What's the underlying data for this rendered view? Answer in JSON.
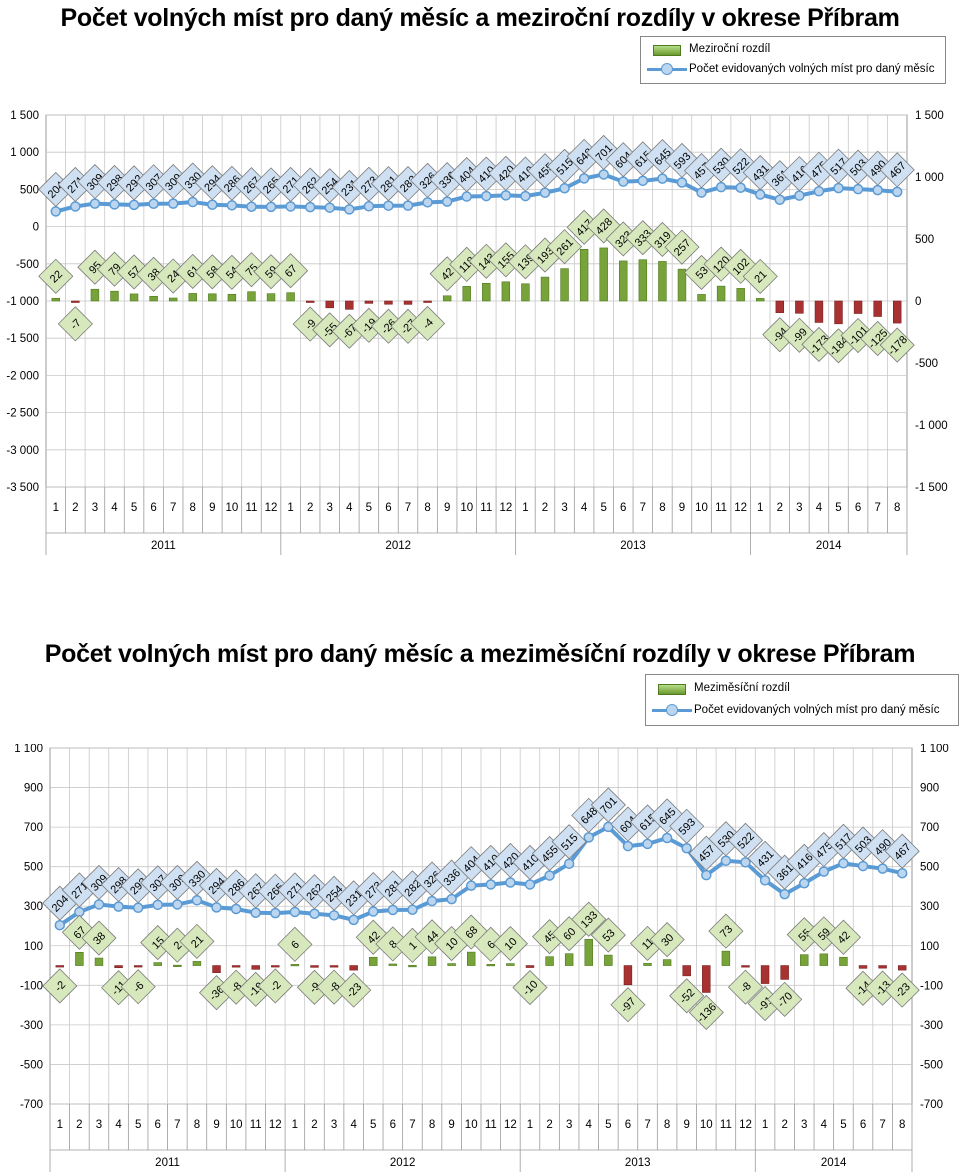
{
  "legend_labels": {
    "yoy_bar": "Meziroční rozdíl",
    "mom_bar": "Meziměsíční rozdíl",
    "line": "Počet evidovaných volných míst pro daný měsíc"
  },
  "colors": {
    "line": "#5b9bd5",
    "bar_positive": "#77a33a",
    "bar_negative": "#a83232",
    "label_line_fill": "#cfe0f2",
    "label_pos_fill": "#d7e8bd",
    "label_neg_fill": "#d7e8bd",
    "grid": "#c8c8c8"
  },
  "chart_data": [
    {
      "type": "bar+line",
      "title": "Počet volných míst pro daný měsíc a meziroční rozdíly v okrese Příbram",
      "months": [
        "1",
        "2",
        "3",
        "4",
        "5",
        "6",
        "7",
        "8",
        "9",
        "10",
        "11",
        "12",
        "1",
        "2",
        "3",
        "4",
        "5",
        "6",
        "7",
        "8",
        "9",
        "10",
        "11",
        "12",
        "1",
        "2",
        "3",
        "4",
        "5",
        "6",
        "7",
        "8",
        "9",
        "10",
        "11",
        "12",
        "1",
        "2",
        "3",
        "4",
        "5",
        "6",
        "7",
        "8"
      ],
      "years": [
        {
          "label": "2011",
          "count": 12
        },
        {
          "label": "2012",
          "count": 12
        },
        {
          "label": "2013",
          "count": 12
        },
        {
          "label": "2014",
          "count": 8
        }
      ],
      "line_series": {
        "name": "Počet evidovaných volných míst pro daný měsíc",
        "axis": "left",
        "values": [
          204,
          271,
          309,
          298,
          292,
          307,
          309,
          330,
          294,
          286,
          267,
          265,
          271,
          262,
          254,
          231,
          273,
          281,
          282,
          326,
          336,
          404,
          410,
          420,
          410,
          455,
          515,
          648,
          701,
          604,
          615,
          645,
          593,
          457,
          530,
          522,
          431,
          361,
          416,
          475,
          517,
          503,
          490,
          467
        ]
      },
      "bar_series": {
        "name": "Meziroční rozdíl",
        "axis": "right",
        "values": [
          22,
          -7,
          95,
          79,
          57,
          38,
          24,
          61,
          58,
          54,
          75,
          59,
          67,
          -9,
          -55,
          -67,
          -19,
          -26,
          -27,
          -4,
          42,
          118,
          143,
          155,
          139,
          193,
          261,
          417,
          428,
          323,
          333,
          319,
          257,
          53,
          120,
          102,
          21,
          -94,
          -99,
          -173,
          -184,
          -101,
          -125,
          -178
        ]
      },
      "left_axis": {
        "min": -3500,
        "max": 1500,
        "step": 500,
        "ticks": [
          "-3 500",
          "-3 000",
          "-2 500",
          "-2 000",
          "-1 500",
          "-1 000",
          "-500",
          "0",
          "500",
          "1 000",
          "1 500"
        ]
      },
      "right_axis": {
        "min": -1500,
        "max": 1500,
        "step": 500,
        "ticks": [
          "-1 500",
          "-1 000",
          "-500",
          "0",
          "500",
          "1 000",
          "1 500"
        ]
      },
      "grid": true
    },
    {
      "type": "bar+line",
      "title": "Počet volných míst pro daný měsíc a meziměsíční rozdíly v okrese Příbram",
      "months": [
        "1",
        "2",
        "3",
        "4",
        "5",
        "6",
        "7",
        "8",
        "9",
        "10",
        "11",
        "12",
        "1",
        "2",
        "3",
        "4",
        "5",
        "6",
        "7",
        "8",
        "9",
        "10",
        "11",
        "12",
        "1",
        "2",
        "3",
        "4",
        "5",
        "6",
        "7",
        "8",
        "9",
        "10",
        "11",
        "12",
        "1",
        "2",
        "3",
        "4",
        "5",
        "6",
        "7",
        "8"
      ],
      "years": [
        {
          "label": "2011",
          "count": 12
        },
        {
          "label": "2012",
          "count": 12
        },
        {
          "label": "2013",
          "count": 12
        },
        {
          "label": "2014",
          "count": 8
        }
      ],
      "line_series": {
        "name": "Počet evidovaných volných míst pro daný měsíc",
        "axis": "left",
        "values": [
          204,
          271,
          309,
          298,
          292,
          307,
          309,
          330,
          294,
          286,
          267,
          265,
          271,
          262,
          254,
          231,
          273,
          281,
          282,
          326,
          336,
          404,
          410,
          420,
          410,
          455,
          515,
          648,
          701,
          604,
          615,
          645,
          593,
          457,
          530,
          522,
          431,
          361,
          416,
          475,
          517,
          503,
          490,
          467
        ]
      },
      "bar_series": {
        "name": "Meziměsíční rozdíl",
        "axis": "left",
        "values": [
          -2,
          67,
          38,
          -11,
          -6,
          15,
          2,
          21,
          -36,
          -8,
          -19,
          -2,
          6,
          -9,
          -8,
          -23,
          42,
          8,
          1,
          44,
          10,
          68,
          6,
          10,
          -10,
          45,
          60,
          133,
          53,
          -97,
          11,
          30,
          -52,
          -136,
          73,
          -8,
          -91,
          -70,
          55,
          59,
          42,
          -14,
          -13,
          -23
        ]
      },
      "left_axis": {
        "min": -700,
        "max": 1100,
        "step": 200,
        "ticks": [
          "-700",
          "-500",
          "-300",
          "-100",
          "100",
          "300",
          "500",
          "700",
          "900",
          "1 100"
        ]
      },
      "right_axis": {
        "min": -700,
        "max": 1100,
        "step": 200,
        "ticks": [
          "-700",
          "-500",
          "-300",
          "-100",
          "100",
          "300",
          "500",
          "700",
          "900",
          "1 100"
        ]
      },
      "grid": true
    }
  ]
}
